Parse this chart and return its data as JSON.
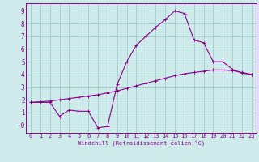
{
  "xlabel": "Windchill (Refroidissement éolien,°C)",
  "bg_color": "#ceeaea",
  "grid_color": "#a0cccc",
  "line_color": "#880088",
  "spine_color": "#880088",
  "xlim": [
    -0.5,
    23.5
  ],
  "ylim": [
    -0.6,
    9.6
  ],
  "xticks": [
    0,
    1,
    2,
    3,
    4,
    5,
    6,
    7,
    8,
    9,
    10,
    11,
    12,
    13,
    14,
    15,
    16,
    17,
    18,
    19,
    20,
    21,
    22,
    23
  ],
  "yticks": [
    0,
    1,
    2,
    3,
    4,
    5,
    6,
    7,
    8,
    9
  ],
  "ytick_labels": [
    "-0",
    "1",
    "2",
    "3",
    "4",
    "5",
    "6",
    "7",
    "8",
    "9"
  ],
  "line1_x": [
    0,
    1,
    2,
    3,
    4,
    5,
    6,
    7,
    8,
    9,
    10,
    11,
    12,
    13,
    14,
    15,
    16,
    17,
    18,
    19,
    20,
    21,
    22,
    23
  ],
  "line1_y": [
    1.8,
    1.8,
    1.8,
    0.7,
    1.2,
    1.1,
    1.1,
    -0.2,
    -0.1,
    3.2,
    5.0,
    6.3,
    7.0,
    7.7,
    8.3,
    9.0,
    8.8,
    6.7,
    6.5,
    5.0,
    5.0,
    4.4,
    4.1,
    4.0
  ],
  "line2_x": [
    0,
    1,
    2,
    3,
    4,
    5,
    6,
    7,
    8,
    9,
    10,
    11,
    12,
    13,
    14,
    15,
    16,
    17,
    18,
    19,
    20,
    21,
    22,
    23
  ],
  "line2_y": [
    1.8,
    1.85,
    1.9,
    2.0,
    2.1,
    2.2,
    2.3,
    2.4,
    2.55,
    2.7,
    2.9,
    3.1,
    3.3,
    3.5,
    3.7,
    3.9,
    4.05,
    4.15,
    4.25,
    4.35,
    4.35,
    4.3,
    4.15,
    4.0
  ],
  "tick_fontsize": 5,
  "xlabel_fontsize": 5,
  "marker_size": 2.5,
  "line_width": 0.8
}
